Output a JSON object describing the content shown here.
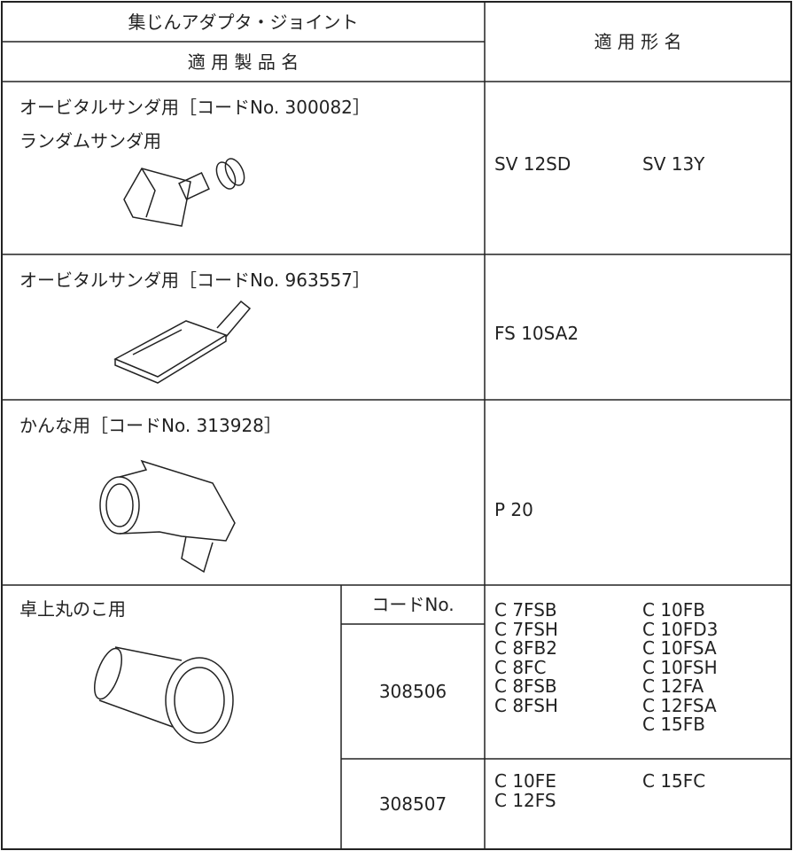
{
  "header": {
    "title": "集じんアダプタ・ジョイント",
    "product_label": "適 用 製 品 名",
    "model_label": "適 用 形 名"
  },
  "rows": [
    {
      "product": [
        "オービタルサンダ用［コードNo. 300082］",
        "ランダムサンダ用"
      ],
      "models": [
        "SV 12SD",
        "SV 13Y"
      ]
    },
    {
      "product": [
        "オービタルサンダ用［コードNo. 963557］"
      ],
      "models": [
        "FS 10SA2"
      ]
    },
    {
      "product": [
        "かんな用［コードNo. 313928］"
      ],
      "models": [
        "P 20"
      ]
    }
  ],
  "saw": {
    "product": "卓上丸のこ用",
    "code_label": "コードNo.",
    "codes": [
      {
        "code": "308506",
        "models": [
          [
            "C 7FSB",
            "C 7FSH",
            "C 8FB2",
            "C 8FC",
            "C 8FSB",
            "C 8FSH"
          ],
          [
            "C 10FB",
            "C 10FD3",
            "C 10FSA",
            "C 10FSH",
            "C 12FA",
            "C 12FSA",
            "C 15FB"
          ]
        ]
      },
      {
        "code": "308507",
        "models": [
          [
            "C 10FE",
            "C 12FS"
          ],
          [
            "C 15FC"
          ]
        ]
      }
    ]
  }
}
